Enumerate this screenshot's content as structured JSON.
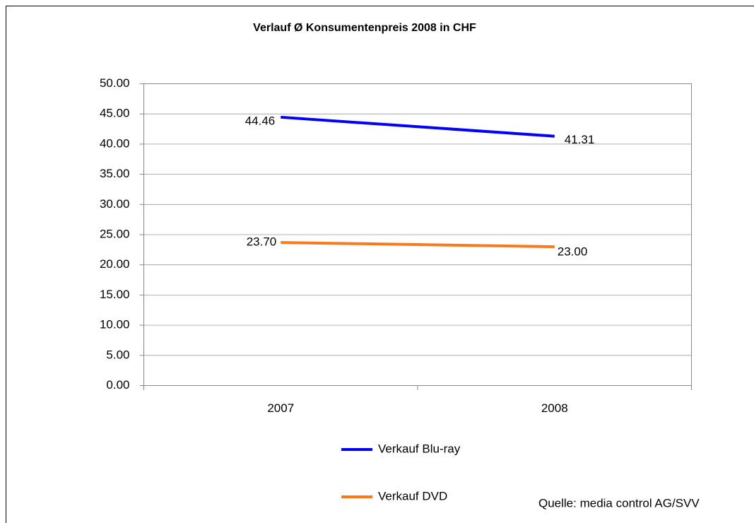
{
  "chart_data": {
    "type": "line",
    "title": "Verlauf Ø Konsumentenpreis 2008 in CHF",
    "categories": [
      "2007",
      "2008"
    ],
    "series": [
      {
        "name": "Verkauf Blu-ray",
        "color": "#0000ff",
        "values": [
          44.46,
          41.31
        ],
        "value_labels": [
          "44.46",
          "41.31"
        ]
      },
      {
        "name": "Verkauf DVD",
        "color": "#f77a1e",
        "values": [
          23.7,
          23.0
        ],
        "value_labels": [
          "23.70",
          "23.00"
        ]
      }
    ],
    "ylim": [
      0,
      50
    ],
    "yticks": [
      {
        "value": 0,
        "label": "0.00"
      },
      {
        "value": 5,
        "label": "5.00"
      },
      {
        "value": 10,
        "label": "10.00"
      },
      {
        "value": 15,
        "label": "15.00"
      },
      {
        "value": 20,
        "label": "20.00"
      },
      {
        "value": 25,
        "label": "25.00"
      },
      {
        "value": 30,
        "label": "30.00"
      },
      {
        "value": 35,
        "label": "35.00"
      },
      {
        "value": 40,
        "label": "40.00"
      },
      {
        "value": 45,
        "label": "45.00"
      },
      {
        "value": 50,
        "label": "50.00"
      }
    ],
    "grid": true,
    "legend": "bottom",
    "source": "Quelle: media control AG/SVV"
  }
}
